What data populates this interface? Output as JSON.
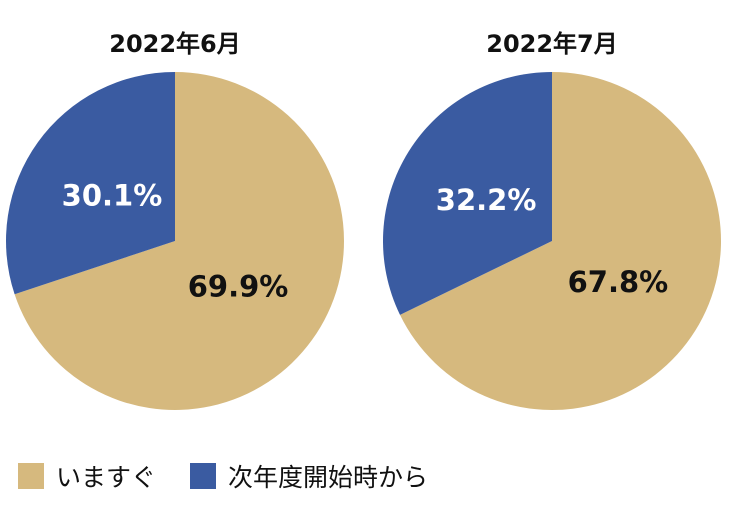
{
  "chart_data": [
    {
      "type": "pie",
      "title": "2022年6月",
      "slices": [
        {
          "name": "いますぐ",
          "value": 69.9,
          "label": "69.9%"
        },
        {
          "name": "次年度開始時から",
          "value": 30.1,
          "label": "30.1%"
        }
      ]
    },
    {
      "type": "pie",
      "title": "2022年7月",
      "slices": [
        {
          "name": "いますぐ",
          "value": 67.8,
          "label": "67.8%"
        },
        {
          "name": "次年度開始時から",
          "value": 32.2,
          "label": "32.2%"
        }
      ]
    }
  ],
  "legend": {
    "placement": "bottom-left",
    "items": [
      {
        "label": "いますぐ",
        "color": "#D6B97E"
      },
      {
        "label": "次年度開始時から",
        "color": "#3A5BA1"
      }
    ]
  },
  "colors": {
    "tan": "#D6B97E",
    "blue": "#3A5BA1",
    "label_on_tan": "#111111",
    "label_on_blue": "#FFFFFF"
  }
}
